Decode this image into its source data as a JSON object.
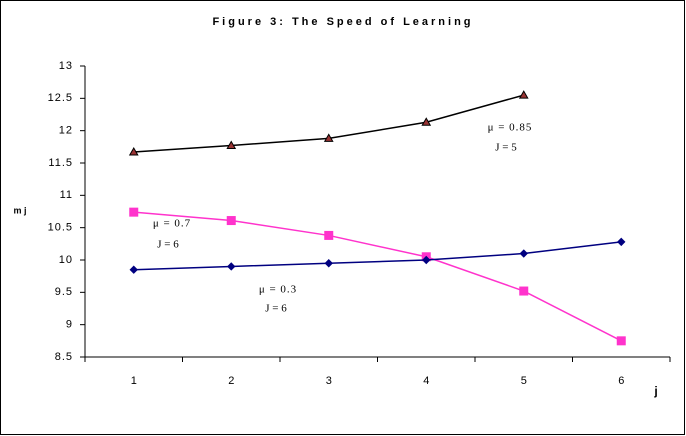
{
  "chart_data": {
    "type": "line",
    "title": "Figure 3: The Speed of Learning",
    "categories": [
      "1",
      "2",
      "3",
      "4",
      "5",
      "6"
    ],
    "xlabel": "j",
    "ylabel": "m j",
    "ylim": [
      8.5,
      13
    ],
    "yticks": [
      8.5,
      9,
      9.5,
      10,
      10.5,
      11,
      11.5,
      12,
      12.5,
      13
    ],
    "series": [
      {
        "name": "μ = 0.85",
        "note": "J = 5",
        "color": "#000000",
        "marker": "triangle",
        "marker_color": "#993333",
        "values": [
          11.67,
          11.77,
          11.88,
          12.13,
          12.55,
          null
        ]
      },
      {
        "name": "μ = 0.7",
        "note": "J = 6",
        "color": "#ff33cc",
        "marker": "square",
        "marker_color": "#ff33cc",
        "values": [
          10.74,
          10.61,
          10.38,
          10.05,
          9.52,
          8.75
        ]
      },
      {
        "name": "μ = 0.3",
        "note": "J = 6",
        "color": "#000080",
        "marker": "diamond",
        "marker_color": "#000080",
        "values": [
          9.85,
          9.9,
          9.95,
          10.0,
          10.1,
          10.28
        ]
      }
    ]
  }
}
